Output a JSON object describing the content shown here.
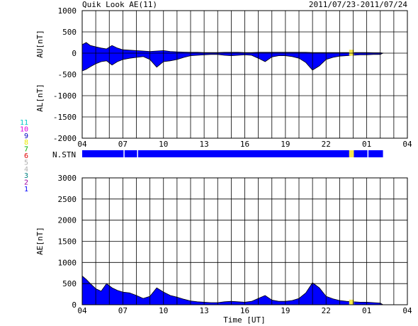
{
  "header": {
    "title": "Quik Look AE(11)",
    "date_range": "2011/07/23-2011/07/24"
  },
  "x_axis": {
    "label": "Time [UT]",
    "range_hours": [
      4,
      28
    ],
    "ticks": [
      "04",
      "07",
      "10",
      "13",
      "16",
      "19",
      "22",
      "01",
      "04"
    ]
  },
  "stations": {
    "label": "N.STN",
    "numbers": [
      "11",
      "10",
      "9",
      "8",
      "7",
      "6",
      "5",
      "4",
      "3",
      "2",
      "1"
    ],
    "colors": [
      "#00c8c8",
      "#e000e0",
      "#0000c0",
      "#e8e800",
      "#00b000",
      "#e00000",
      "#b0b0b0",
      "#b0b0b0",
      "#008080",
      "#a000a0",
      "#0000ff"
    ],
    "bar_color": "#0000ff",
    "gap_color": "#ffffff",
    "highlight_color": "#f5e84a",
    "bar_end_hour": 26.2
  },
  "colors": {
    "fill": "#0000ff",
    "outline": "#000000",
    "highlight": "#f5e84a",
    "grid": "#000000"
  },
  "chart_data": [
    {
      "type": "area",
      "name": "AU/AL",
      "ylabel_upper": "AU[nT]",
      "ylabel_lower": "AL[nT]",
      "ylim": [
        -2000,
        1000
      ],
      "yticks": [
        1000,
        500,
        0,
        -500,
        -1000,
        -1500,
        -2000
      ],
      "x_hours": [
        4,
        4.3,
        4.6,
        5,
        5.4,
        5.8,
        6.2,
        6.6,
        7,
        7.5,
        8,
        8.5,
        9,
        9.5,
        10,
        10.5,
        11,
        11.5,
        12,
        12.5,
        13,
        13.5,
        14,
        14.5,
        15,
        15.5,
        16,
        16.5,
        17,
        17.5,
        18,
        18.5,
        19,
        19.5,
        20,
        20.5,
        21,
        21.5,
        22,
        22.5,
        23,
        23.5,
        24,
        24.5,
        25,
        25.5,
        26,
        26.2
      ],
      "au": [
        200,
        250,
        180,
        150,
        120,
        100,
        180,
        120,
        80,
        70,
        60,
        50,
        40,
        50,
        60,
        40,
        30,
        25,
        20,
        20,
        15,
        15,
        15,
        20,
        20,
        20,
        15,
        15,
        20,
        20,
        20,
        20,
        20,
        20,
        20,
        20,
        15,
        15,
        15,
        15,
        15,
        15,
        15,
        15,
        15,
        10,
        10,
        0
      ],
      "al": [
        -420,
        -380,
        -320,
        -250,
        -200,
        -180,
        -280,
        -200,
        -150,
        -120,
        -100,
        -80,
        -150,
        -330,
        -200,
        -180,
        -150,
        -100,
        -60,
        -50,
        -40,
        -30,
        -30,
        -50,
        -60,
        -50,
        -40,
        -50,
        -120,
        -200,
        -90,
        -60,
        -60,
        -80,
        -120,
        -220,
        -400,
        -300,
        -150,
        -100,
        -70,
        -60,
        -50,
        -40,
        -40,
        -30,
        -30,
        0
      ]
    },
    {
      "type": "area",
      "name": "AE",
      "ylabel": "AE[nT]",
      "ylim": [
        0,
        3000
      ],
      "yticks": [
        3000,
        2500,
        2000,
        1500,
        1000,
        500,
        0
      ],
      "x_hours": [
        4,
        4.3,
        4.6,
        5,
        5.4,
        5.8,
        6.2,
        6.6,
        7,
        7.5,
        8,
        8.5,
        9,
        9.5,
        10,
        10.5,
        11,
        11.5,
        12,
        12.5,
        13,
        13.5,
        14,
        14.5,
        15,
        15.5,
        16,
        16.5,
        17,
        17.5,
        18,
        18.5,
        19,
        19.5,
        20,
        20.5,
        21,
        21.5,
        22,
        22.5,
        23,
        23.5,
        24,
        24.5,
        25,
        25.5,
        26,
        26.2
      ],
      "values": [
        680,
        600,
        500,
        380,
        320,
        500,
        400,
        340,
        300,
        280,
        220,
        150,
        200,
        400,
        300,
        220,
        180,
        130,
        90,
        70,
        60,
        50,
        50,
        70,
        80,
        70,
        60,
        80,
        150,
        220,
        110,
        80,
        80,
        100,
        150,
        280,
        520,
        400,
        200,
        140,
        100,
        80,
        70,
        60,
        60,
        50,
        40,
        0
      ]
    }
  ],
  "highlight_band_hours": [
    23.7,
    24.05
  ]
}
